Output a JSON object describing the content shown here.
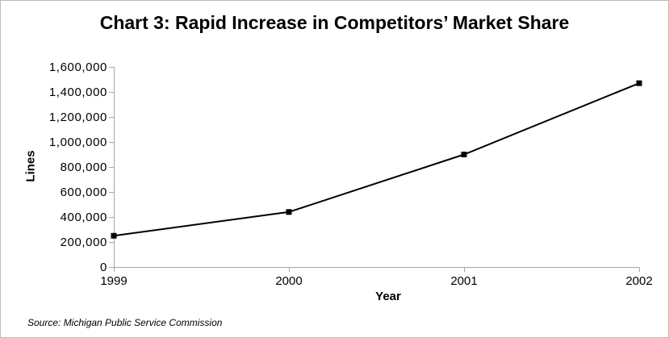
{
  "title": "Chart 3: Rapid Increase in Competitors’ Market Share",
  "source_note": "Source: Michigan Public Service Commission",
  "chart_data": {
    "type": "line",
    "title": "Chart 3: Rapid Increase in Competitors’ Market Share",
    "categories": [
      "1999",
      "2000",
      "2001",
      "2002"
    ],
    "values": [
      250000,
      440000,
      900000,
      1470000
    ],
    "xlabel": "Year",
    "ylabel": "Lines",
    "ylim": [
      0,
      1600000
    ],
    "ytick_step": 200000,
    "grid": false,
    "legend_position": "none",
    "line_color": "#000000",
    "marker": "square",
    "marker_color": "#000000",
    "axis_color": "#a6a6a6",
    "background_color": "#ffffff"
  }
}
